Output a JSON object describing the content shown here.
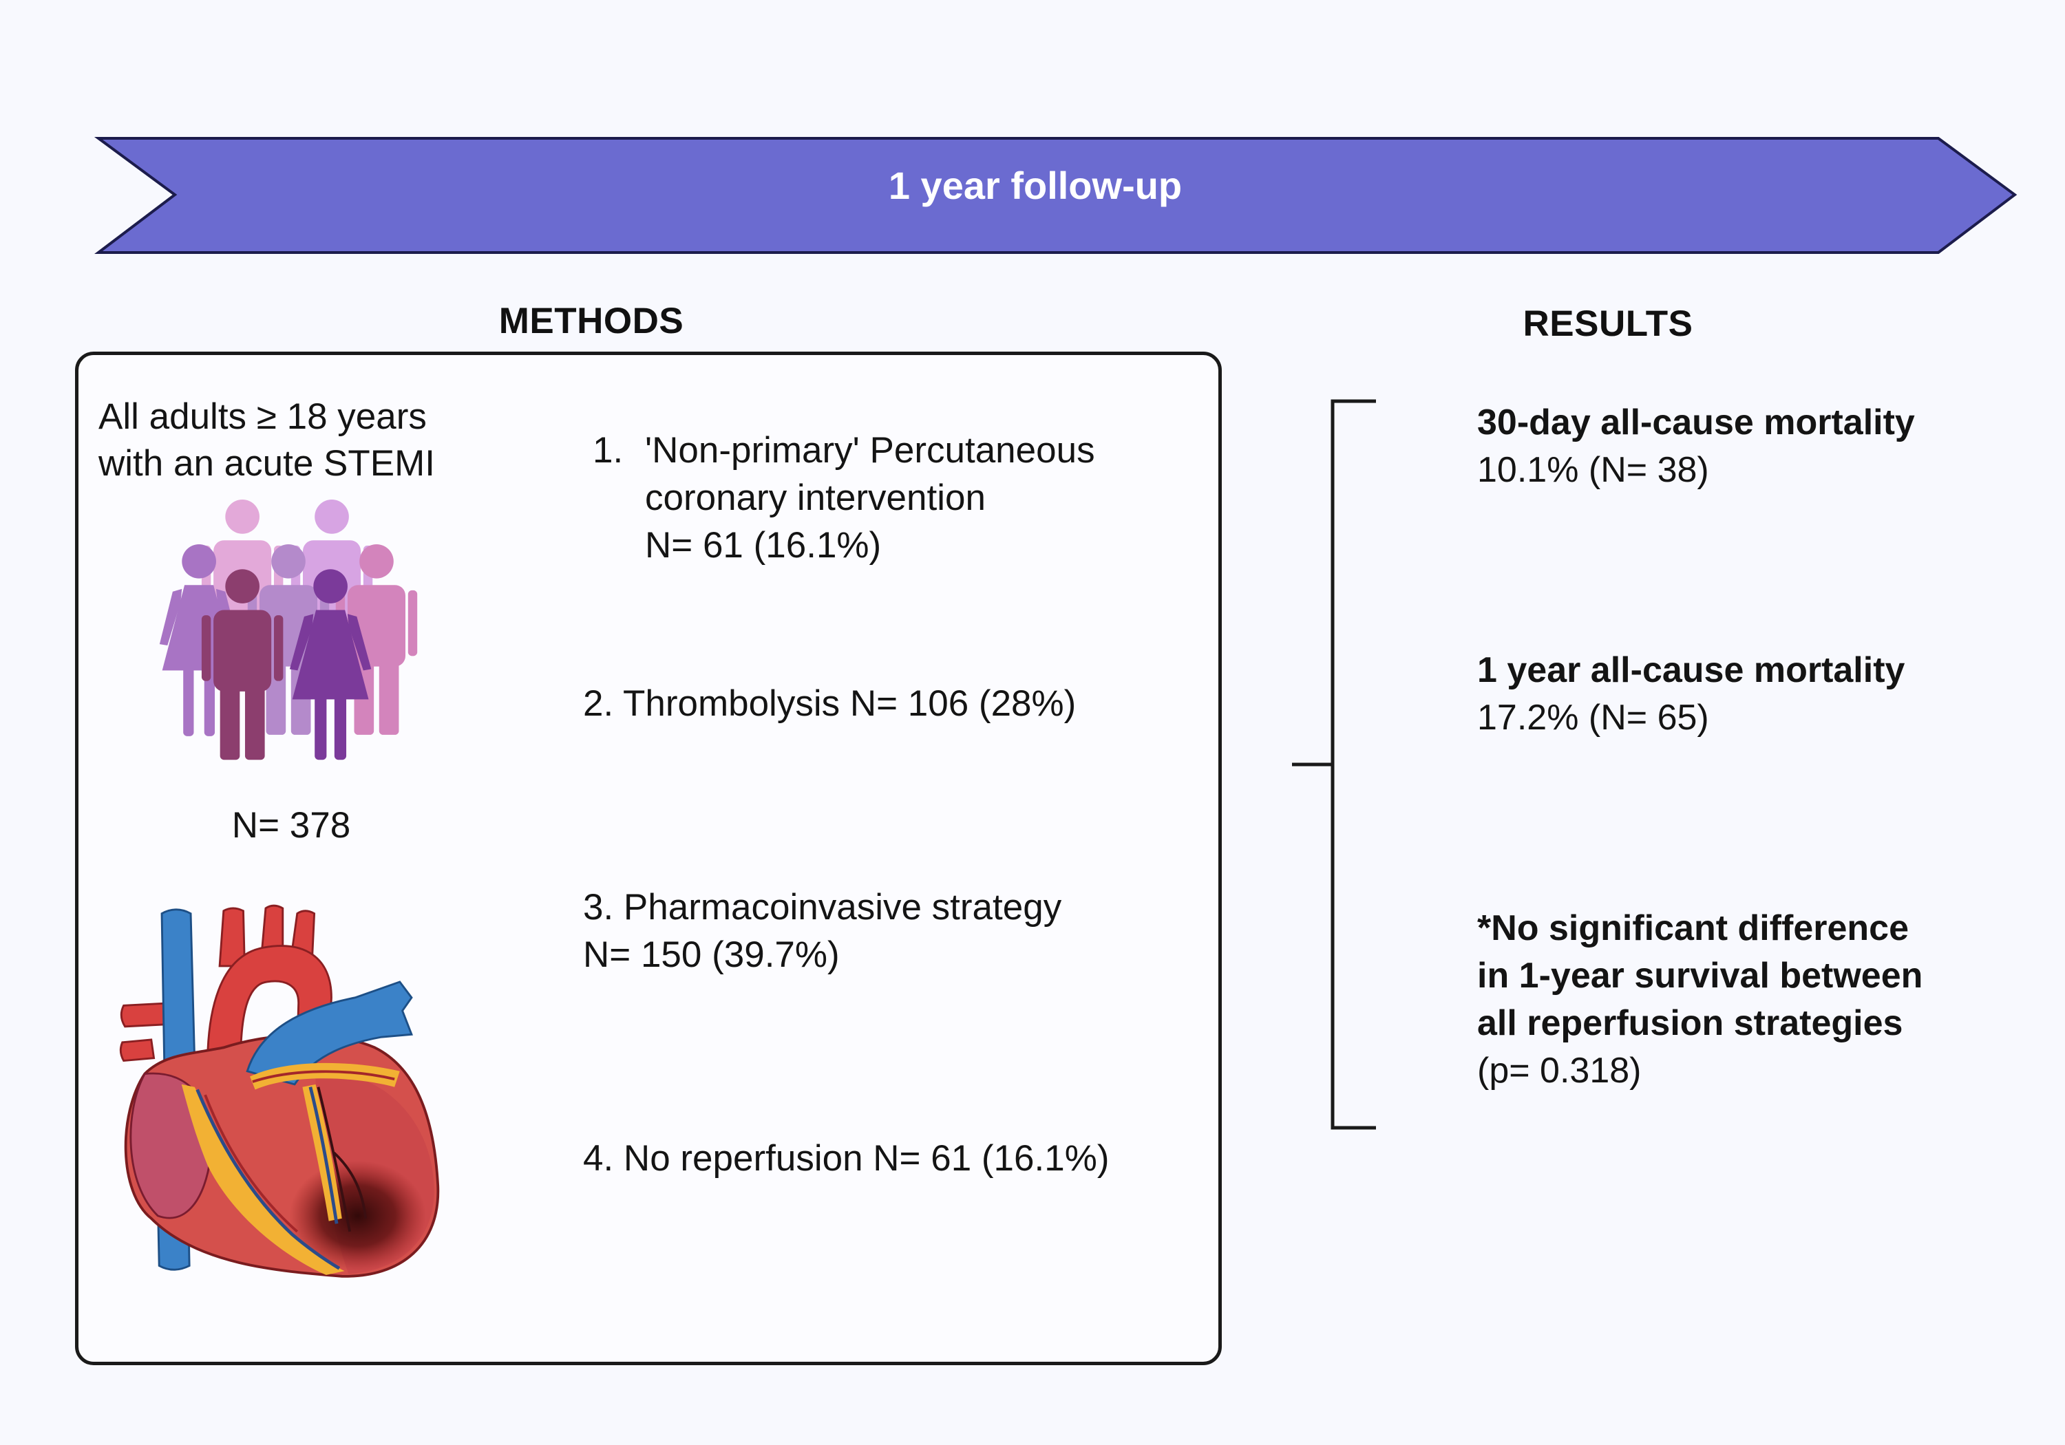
{
  "banner": {
    "label": "1 year follow-up"
  },
  "methods": {
    "heading": "METHODS",
    "population": {
      "lines": [
        "All adults ≥ 18 years",
        "with an acute STEMI"
      ],
      "count": "N= 378",
      "icon": "people-group-icon"
    },
    "heart_icon": "heart-icon",
    "strategies": [
      {
        "number": "1.",
        "lines": [
          "'Non-primary' Percutaneous",
          "coronary intervention",
          "N= 61 (16.1%)"
        ]
      },
      {
        "lines": [
          "2. Thrombolysis N= 106 (28%)"
        ]
      },
      {
        "lines": [
          "3. Pharmacoinvasive strategy",
          "N= 150 (39.7%)"
        ]
      },
      {
        "lines": [
          "4. No reperfusion N= 61 (16.1%)"
        ]
      }
    ]
  },
  "results": {
    "heading": "RESULTS",
    "items": [
      {
        "title": [
          "30-day all-cause mortality"
        ],
        "value": "10.1% (N= 38)"
      },
      {
        "title": [
          "1 year all-cause mortality"
        ],
        "value": "17.2% (N= 65)"
      },
      {
        "title": [
          "*No significant difference",
          "in 1-year survival between",
          "all reperfusion strategies"
        ],
        "value": "(p= 0.318)"
      }
    ]
  },
  "colors": {
    "banner": "#6b6bd0",
    "background": "#f8f9fe",
    "text": "#111111"
  }
}
